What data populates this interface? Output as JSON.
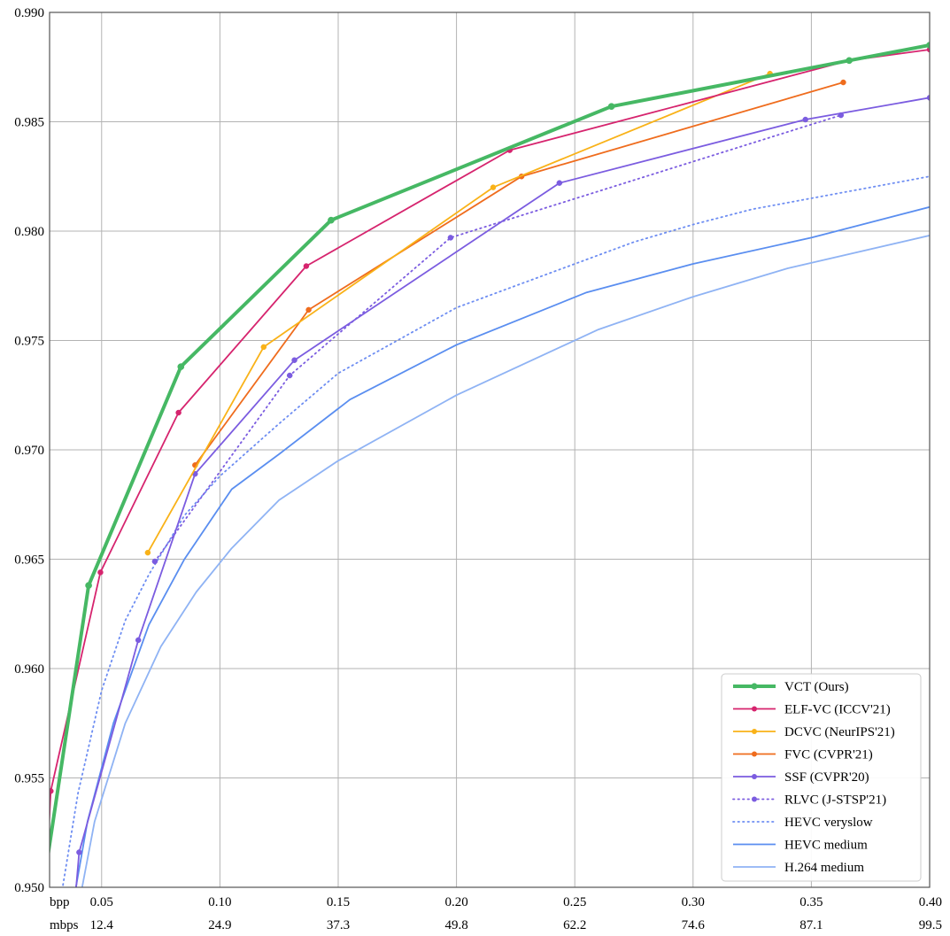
{
  "chart_data": {
    "type": "line",
    "title": "",
    "xlabel": "",
    "ylabel": "",
    "xlim": [
      0.028,
      0.4
    ],
    "ylim": [
      0.95,
      0.99
    ],
    "grid": true,
    "legend_position": "bottom-right",
    "x_axis_prefix_top": "bpp",
    "x_axis_prefix_bottom": "mbps",
    "x_ticks": [
      0.05,
      0.1,
      0.15,
      0.2,
      0.25,
      0.3,
      0.35,
      0.4
    ],
    "x_tick_labels_bpp": [
      "0.05",
      "0.10",
      "0.15",
      "0.20",
      "0.25",
      "0.30",
      "0.35",
      "0.40"
    ],
    "x_tick_labels_mbps": [
      "12.4",
      "24.9",
      "37.3",
      "49.8",
      "62.2",
      "74.6",
      "87.1",
      "99.5"
    ],
    "y_ticks": [
      0.95,
      0.955,
      0.96,
      0.965,
      0.97,
      0.975,
      0.98,
      0.985,
      0.99
    ],
    "y_tick_labels": [
      "0.950",
      "0.955",
      "0.960",
      "0.965",
      "0.970",
      "0.975",
      "0.980",
      "0.985",
      "0.990"
    ],
    "series": [
      {
        "name": "VCT (Ours)",
        "color": "#46b864",
        "style": "solid",
        "markers": true,
        "width": 4,
        "x": [
          0.0235,
          0.0264,
          0.0445,
          0.0835,
          0.147,
          0.2655,
          0.366,
          0.4
        ],
        "y": [
          0.9478,
          0.9508,
          0.9638,
          0.9738,
          0.9805,
          0.9857,
          0.9878,
          0.9885
        ]
      },
      {
        "name": "ELF-VC (ICCV'21)",
        "color": "#d6246e",
        "style": "solid",
        "markers": true,
        "width": 1.8,
        "x": [
          0.0255,
          0.0285,
          0.0495,
          0.0825,
          0.1365,
          0.2225,
          0.366,
          0.4
        ],
        "y": [
          0.9478,
          0.9544,
          0.9644,
          0.9717,
          0.9784,
          0.9837,
          0.9878,
          0.9883
        ]
      },
      {
        "name": "DCVC (NeurIPS'21)",
        "color": "#f9b218",
        "style": "solid",
        "markers": true,
        "width": 1.8,
        "x": [
          0.0695,
          0.1185,
          0.2155,
          0.3325
        ],
        "y": [
          0.9653,
          0.9747,
          0.982,
          0.9872
        ]
      },
      {
        "name": "FVC (CVPR'21)",
        "color": "#ef6c1d",
        "style": "solid",
        "markers": true,
        "width": 1.8,
        "x": [
          0.0895,
          0.1375,
          0.2275,
          0.3635
        ],
        "y": [
          0.9693,
          0.9764,
          0.9825,
          0.9868
        ]
      },
      {
        "name": "SSF (CVPR'20)",
        "color": "#7b5ce0",
        "style": "solid",
        "markers": true,
        "width": 1.8,
        "x": [
          0.0375,
          0.0405,
          0.0655,
          0.0895,
          0.1315,
          0.2435,
          0.3475,
          0.4
        ],
        "y": [
          0.9478,
          0.9516,
          0.9613,
          0.9689,
          0.9741,
          0.9822,
          0.9851,
          0.9861
        ]
      },
      {
        "name": "RLVC (J-STSP'21)",
        "color": "#7b5ce0",
        "style": "dotted",
        "markers": true,
        "width": 1.8,
        "x": [
          0.0725,
          0.1295,
          0.1975,
          0.3625
        ],
        "y": [
          0.9649,
          0.9734,
          0.9797,
          0.9853
        ]
      },
      {
        "name": "HEVC veryslow",
        "color": "#6d8df2",
        "style": "dotted",
        "markers": false,
        "width": 1.8,
        "x": [
          0.032,
          0.04,
          0.05,
          0.06,
          0.07,
          0.085,
          0.1,
          0.125,
          0.15,
          0.175,
          0.2,
          0.225,
          0.25,
          0.275,
          0.3,
          0.325,
          0.35,
          0.375,
          0.4
        ],
        "y": [
          0.949,
          0.9543,
          0.959,
          0.9622,
          0.9643,
          0.967,
          0.9688,
          0.9712,
          0.9735,
          0.975,
          0.9765,
          0.9775,
          0.9785,
          0.9795,
          0.9803,
          0.981,
          0.9815,
          0.982,
          0.9825
        ]
      },
      {
        "name": "HEVC medium",
        "color": "#5a8ef0",
        "style": "solid",
        "markers": false,
        "width": 1.8,
        "x": [
          0.0375,
          0.044,
          0.055,
          0.07,
          0.085,
          0.105,
          0.125,
          0.155,
          0.2,
          0.255,
          0.3,
          0.35,
          0.4
        ],
        "y": [
          0.949,
          0.953,
          0.9575,
          0.962,
          0.965,
          0.9682,
          0.9698,
          0.9723,
          0.9748,
          0.9772,
          0.9785,
          0.9797,
          0.9811
        ]
      },
      {
        "name": "H.264 medium",
        "color": "#8fb3f4",
        "style": "solid",
        "markers": false,
        "width": 1.8,
        "x": [
          0.04,
          0.047,
          0.06,
          0.075,
          0.09,
          0.105,
          0.125,
          0.15,
          0.2,
          0.26,
          0.3,
          0.34,
          0.4
        ],
        "y": [
          0.949,
          0.953,
          0.9575,
          0.961,
          0.9635,
          0.9655,
          0.9677,
          0.9695,
          0.9725,
          0.9755,
          0.977,
          0.9783,
          0.9798
        ]
      }
    ]
  }
}
